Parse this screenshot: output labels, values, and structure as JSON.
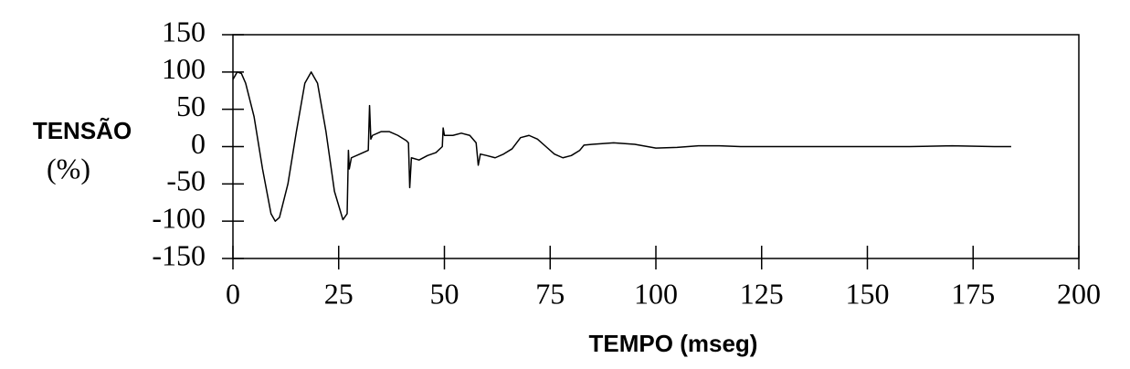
{
  "chart_data": {
    "type": "line",
    "xlabel": "TEMPO (mseg)",
    "ylabel": [
      "TENSÃO",
      "(%)"
    ],
    "x": [
      0,
      1,
      2,
      3,
      5,
      7,
      9,
      10,
      11,
      13,
      15,
      17,
      18.5,
      20,
      22,
      24,
      26,
      27,
      27.3,
      27.5,
      28,
      30,
      32,
      32.3,
      32.6,
      33,
      35,
      37,
      39,
      41,
      41.5,
      41.8,
      42.2,
      44,
      46,
      48,
      49.5,
      49.7,
      50,
      52,
      54,
      56,
      57.5,
      58,
      58.5,
      60,
      62,
      64,
      66,
      68,
      70,
      72,
      74,
      76,
      78,
      80,
      82,
      83,
      85,
      90,
      95,
      100,
      105,
      110,
      115,
      120,
      130,
      140,
      150,
      160,
      170,
      180,
      184
    ],
    "values": [
      90,
      100,
      98,
      85,
      40,
      -30,
      -90,
      -100,
      -95,
      -50,
      20,
      85,
      100,
      85,
      20,
      -60,
      -98,
      -90,
      -5,
      -30,
      -15,
      -10,
      -5,
      55,
      10,
      15,
      20,
      20,
      15,
      8,
      5,
      -55,
      -15,
      -18,
      -12,
      -8,
      0,
      25,
      15,
      15,
      18,
      15,
      5,
      -25,
      -10,
      -12,
      -15,
      -10,
      -3,
      12,
      15,
      10,
      0,
      -10,
      -15,
      -12,
      -5,
      2,
      3,
      5,
      3,
      -2,
      -1,
      1,
      1,
      0,
      0,
      0,
      0,
      0,
      1,
      0,
      0
    ],
    "color": "#000000",
    "xlim": [
      0,
      200
    ],
    "xticks": [
      0,
      25,
      50,
      75,
      100,
      125,
      150,
      175,
      200
    ],
    "ylim": [
      -150,
      150
    ],
    "yticks": [
      -150,
      -100,
      -50,
      0,
      50,
      100,
      150
    ],
    "grid": false
  }
}
